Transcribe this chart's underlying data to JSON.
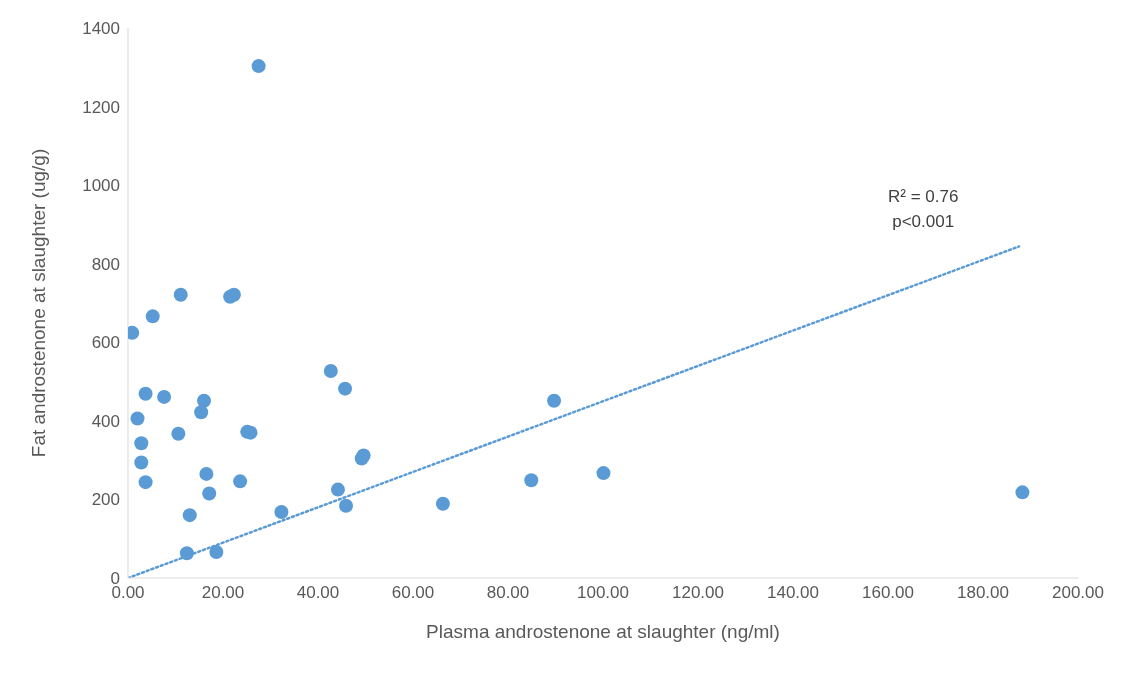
{
  "chart_data": {
    "type": "scatter",
    "xlabel": "Plasma androstenone at slaughter (ng/ml)",
    "ylabel": "Fat androstenone at slaughter (ug/g)",
    "xlim": [
      0,
      200
    ],
    "xticks": [
      {
        "value": 0,
        "label": "0.00"
      },
      {
        "value": 20,
        "label": "20.00"
      },
      {
        "value": 40,
        "label": "40.00"
      },
      {
        "value": 60,
        "label": "60.00"
      },
      {
        "value": 80,
        "label": "80.00"
      },
      {
        "value": 100,
        "label": "100.00"
      },
      {
        "value": 120,
        "label": "120.00"
      },
      {
        "value": 140,
        "label": "140.00"
      },
      {
        "value": 160,
        "label": "160.00"
      },
      {
        "value": 180,
        "label": "180.00"
      },
      {
        "value": 200,
        "label": "200.00"
      }
    ],
    "ylim": [
      0,
      1400
    ],
    "yticks": [
      0,
      200,
      400,
      600,
      800,
      1000,
      1200,
      1400
    ],
    "grid": false,
    "annotations": [
      "R² = 0.76",
      "p<0.001"
    ],
    "series": [
      {
        "color": "#5b9bd5",
        "marker": "circle",
        "x": [
          0.9,
          5.2,
          11.1,
          21.5,
          22.3,
          27.5,
          2.0,
          3.7,
          7.6,
          2.8,
          2.8,
          3.7,
          10.6,
          15.4,
          16.0,
          16.5,
          17.1,
          13.0,
          12.4,
          18.6,
          23.6,
          25.1,
          25.8,
          32.3,
          42.7,
          45.7,
          44.2,
          45.9,
          49.2,
          49.6,
          66.3,
          84.9,
          89.7,
          100.1,
          188.3
        ],
        "values": [
          624,
          666,
          721,
          716,
          721,
          1303,
          406,
          469,
          461,
          343,
          294,
          244,
          367,
          422,
          451,
          265,
          215,
          160,
          63,
          66,
          246,
          372,
          370,
          168,
          527,
          482,
          225,
          184,
          304,
          312,
          189,
          249,
          451,
          267,
          218
        ]
      },
      {
        "type": "line",
        "color": "#5b9bd5",
        "line_style": "dotted",
        "marker": "none",
        "x": [
          0,
          187.6
        ],
        "values": [
          0,
          844
        ]
      }
    ]
  }
}
